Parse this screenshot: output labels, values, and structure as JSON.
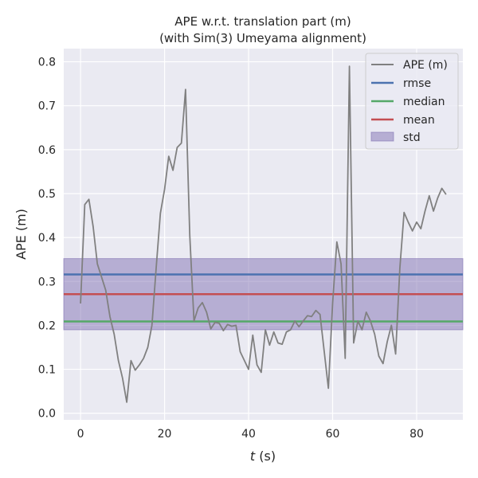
{
  "chart_data": {
    "type": "line",
    "title": "APE w.r.t. translation part (m)",
    "subtitle": "(with Sim(3) Umeyama alignment)",
    "xlabel_var": "t",
    "xlabel_unit": "(s)",
    "ylabel": "APE (m)",
    "xlim": [
      -4,
      91
    ],
    "ylim": [
      -0.015,
      0.83
    ],
    "xticks": [
      0,
      20,
      40,
      60,
      80
    ],
    "yticks": [
      0.0,
      0.1,
      0.2,
      0.3,
      0.4,
      0.5,
      0.6,
      0.7,
      0.8
    ],
    "grid": true,
    "legend_position": "top-right",
    "legend": [
      "APE (m)",
      "rmse",
      "median",
      "mean",
      "std"
    ],
    "colors": {
      "ape": "#808080",
      "rmse": "#4c72b0",
      "median": "#55a868",
      "mean": "#c44e52",
      "std": "#8172b3",
      "background": "#eaeaf2",
      "grid": "#ffffff"
    },
    "series": [
      {
        "name": "APE (m)",
        "x": [
          0,
          1,
          2,
          3,
          4,
          5,
          6,
          7,
          8,
          9,
          10,
          11,
          12,
          13,
          14,
          15,
          16,
          17,
          18,
          19,
          20,
          21,
          22,
          23,
          24,
          25,
          26,
          27,
          28,
          29,
          30,
          31,
          32,
          33,
          34,
          35,
          36,
          37,
          38,
          39,
          40,
          41,
          42,
          43,
          44,
          45,
          46,
          47,
          48,
          49,
          50,
          51,
          52,
          53,
          54,
          55,
          56,
          57,
          58,
          59,
          60,
          61,
          62,
          63,
          64,
          65,
          66,
          67,
          68,
          69,
          70,
          71,
          72,
          73,
          74,
          75,
          76,
          77,
          78,
          79,
          80,
          81,
          82,
          83,
          84,
          85,
          86,
          87
        ],
        "y": [
          0.25,
          0.475,
          0.487,
          0.425,
          0.34,
          0.31,
          0.28,
          0.22,
          0.18,
          0.12,
          0.08,
          0.025,
          0.12,
          0.098,
          0.11,
          0.125,
          0.15,
          0.2,
          0.33,
          0.455,
          0.51,
          0.585,
          0.553,
          0.605,
          0.615,
          0.737,
          0.405,
          0.21,
          0.24,
          0.252,
          0.23,
          0.192,
          0.207,
          0.205,
          0.188,
          0.202,
          0.198,
          0.2,
          0.14,
          0.12,
          0.1,
          0.178,
          0.11,
          0.093,
          0.19,
          0.155,
          0.185,
          0.16,
          0.157,
          0.185,
          0.19,
          0.21,
          0.197,
          0.21,
          0.222,
          0.22,
          0.234,
          0.225,
          0.14,
          0.057,
          0.25,
          0.39,
          0.34,
          0.125,
          0.79,
          0.16,
          0.21,
          0.19,
          0.23,
          0.21,
          0.18,
          0.13,
          0.113,
          0.163,
          0.2,
          0.135,
          0.33,
          0.457,
          0.435,
          0.415,
          0.435,
          0.42,
          0.46,
          0.495,
          0.46,
          0.49,
          0.512,
          0.498
        ]
      }
    ],
    "stats": {
      "rmse": 0.316,
      "median": 0.209,
      "mean": 0.271,
      "std": 0.081
    }
  }
}
